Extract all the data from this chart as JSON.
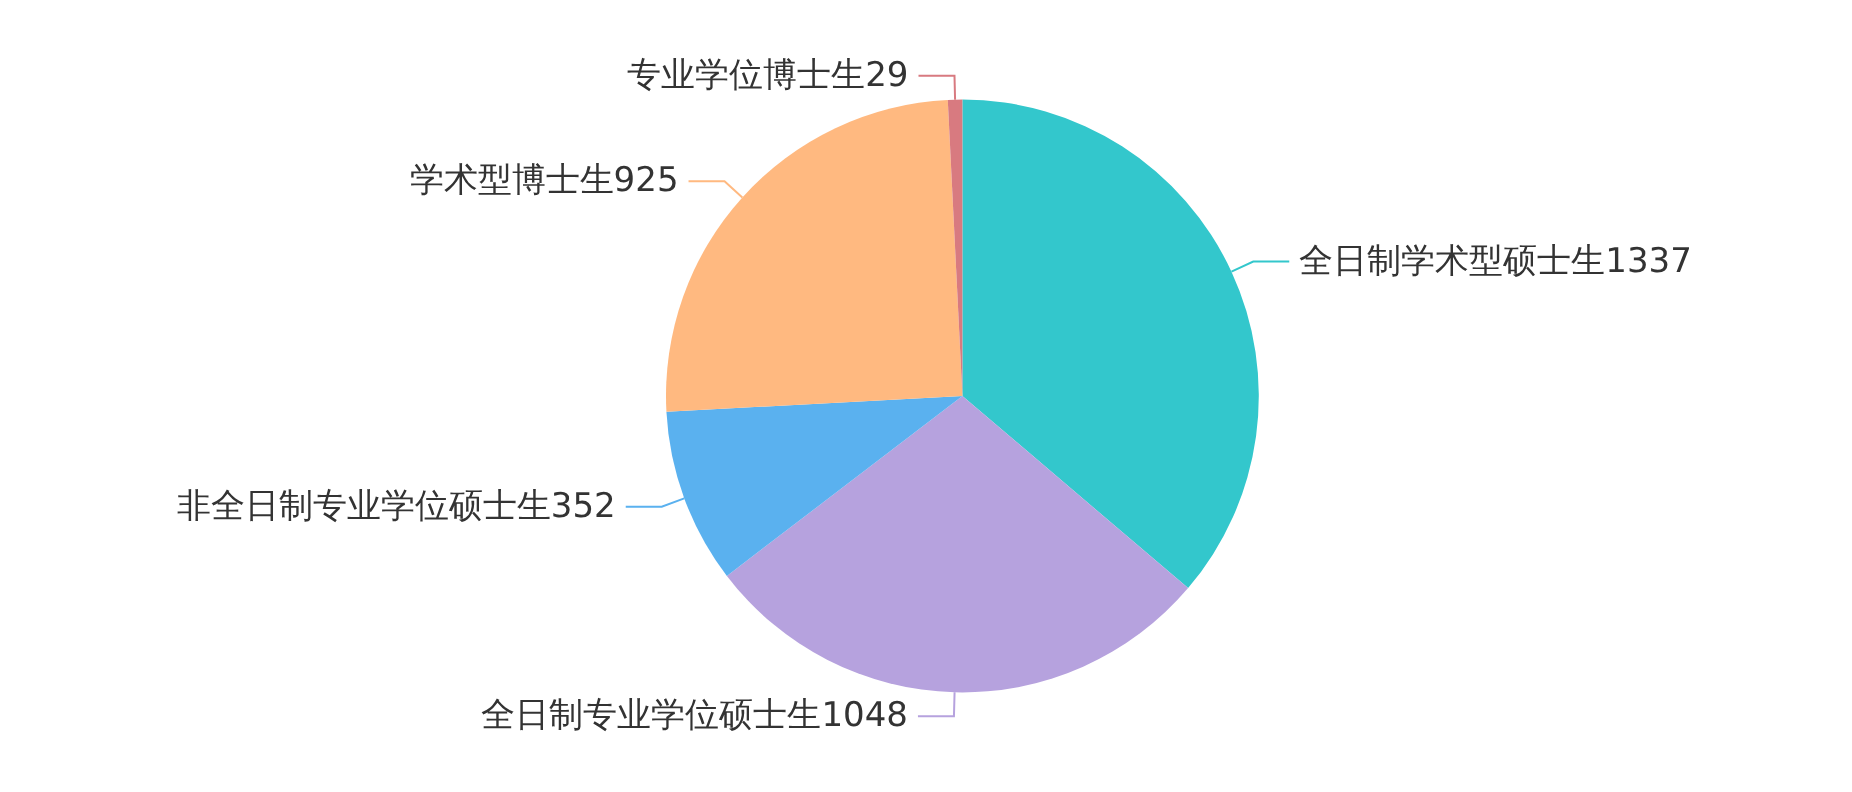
{
  "chart_data": {
    "type": "pie",
    "categories": [
      "全日制学术型硕士生",
      "全日制专业学位硕士生",
      "非全日制专业学位硕士生",
      "学术型博士生",
      "专业学位博士生"
    ],
    "values": [
      1337,
      1048,
      352,
      925,
      29
    ],
    "colors": [
      "#33c7cc",
      "#b6a2de",
      "#5ab1ef",
      "#ffb980",
      "#d87a80"
    ],
    "data_labels": true,
    "legend": false
  }
}
